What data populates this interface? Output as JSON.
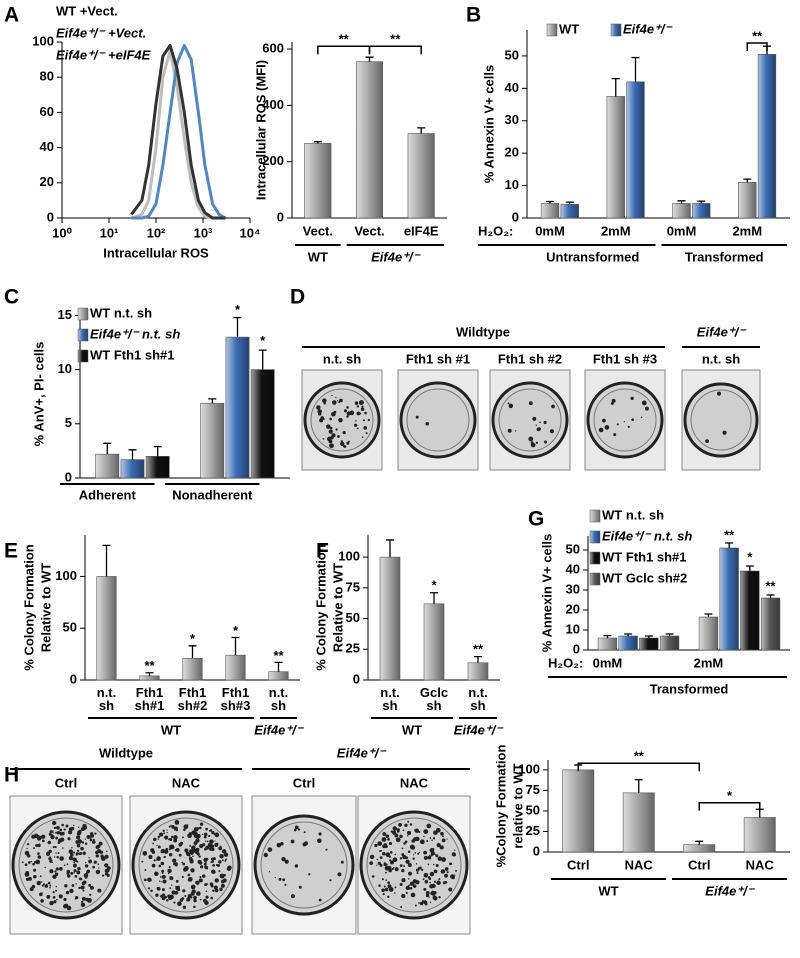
{
  "chart_data": [
    {
      "type": "line",
      "x_label": "Intracellular ROS",
      "x_log": true,
      "x": [
        30,
        50,
        70,
        100,
        140,
        200,
        280,
        400,
        560,
        800,
        1100,
        1600,
        2200,
        3000
      ],
      "series": [
        {
          "name": "WT +Vect.",
          "color": "#bdbdbd",
          "values": [
            0,
            2,
            10,
            40,
            80,
            95,
            75,
            45,
            20,
            6,
            1,
            0,
            0,
            0
          ]
        },
        {
          "name": "Eif4e⁺/⁻ +Vect.",
          "color": "#4f86c6",
          "values": [
            0,
            0,
            1,
            8,
            30,
            60,
            88,
            98,
            90,
            60,
            30,
            8,
            2,
            0
          ]
        },
        {
          "name": "Eif4e⁺/⁻ +eIF4E",
          "color": "#333333",
          "values": [
            2,
            10,
            30,
            65,
            92,
            98,
            85,
            60,
            30,
            10,
            3,
            0,
            0,
            0
          ]
        }
      ],
      "xlim": [
        1,
        10000
      ],
      "xticks": [
        {
          "value": 1,
          "label": "10⁰"
        },
        {
          "value": 10,
          "label": "10¹"
        },
        {
          "value": 100,
          "label": "10²"
        },
        {
          "value": 1000,
          "label": "10³"
        },
        {
          "value": 10000,
          "label": "10⁴"
        }
      ],
      "ylim": [
        0,
        100
      ],
      "yticks": [
        0,
        20,
        40,
        60,
        80,
        100
      ],
      "legend": "text-top-left"
    },
    {
      "type": "bar",
      "y_label": "Intracellular ROS (MFI)",
      "categories": [
        "Vect.",
        "Vect.",
        "eIF4E"
      ],
      "values": [
        265,
        555,
        300
      ],
      "errors": [
        6,
        16,
        20
      ],
      "color": "#a8a8a8",
      "groups": [
        "WT",
        "Eif4e⁺/⁻"
      ],
      "annotations": [
        "**",
        "**"
      ],
      "ylim": [
        0,
        625
      ],
      "yticks": [
        0,
        200,
        400,
        600
      ]
    },
    {
      "type": "bar",
      "y_label": "% Annexin V+ cells",
      "x_prefix": "H₂O₂:",
      "categories": [
        "0mM",
        "2mM",
        "0mM",
        "2mM"
      ],
      "series": [
        {
          "name": "WT",
          "color": "#a8a8a8",
          "values": [
            4.5,
            37.5,
            4.5,
            11
          ],
          "errors": [
            0.6,
            5.5,
            0.8,
            1
          ]
        },
        {
          "name": "Eif4e⁺/⁻",
          "color": "#3a6db5",
          "values": [
            4.2,
            42,
            4.5,
            50.5
          ],
          "errors": [
            0.7,
            7.5,
            0.7,
            2.5
          ]
        }
      ],
      "groups": [
        "Untransformed",
        "Transformed"
      ],
      "annotations": [
        "**"
      ],
      "ylim": [
        0,
        58
      ],
      "yticks": [
        0,
        10,
        20,
        30,
        40,
        50
      ],
      "legend": "top"
    },
    {
      "type": "bar",
      "y_label": "% AnV+, PI- cells",
      "categories": [
        "Adherent",
        "Nonadherent"
      ],
      "series": [
        {
          "name": "WT n.t. sh",
          "color": "#a8a8a8",
          "values": [
            2.2,
            6.9
          ],
          "errors": [
            1.0,
            0.4
          ]
        },
        {
          "name": "Eif4e⁺/⁻ n.t. sh",
          "color": "#3a6db5",
          "values": [
            1.7,
            13
          ],
          "errors": [
            0.9,
            1.8
          ]
        },
        {
          "name": "WT Fth1 sh#1",
          "color": "#111111",
          "values": [
            2.0,
            10
          ],
          "errors": [
            0.9,
            1.8
          ]
        }
      ],
      "annotations": [
        "*",
        "*"
      ],
      "ylim": [
        0,
        15.5
      ],
      "yticks": [
        0,
        5,
        10,
        15
      ],
      "legend": "top-left"
    },
    {
      "type": "bar",
      "y_label": [
        "% Colony Formation",
        "Relative to WT"
      ],
      "categories": [
        "n.t. sh",
        "Fth1 sh#1",
        "Fth1 sh#2",
        "Fth1 sh#3",
        "n.t. sh"
      ],
      "values": [
        100,
        4,
        21,
        24,
        8
      ],
      "errors": [
        30,
        3,
        12,
        17,
        9
      ],
      "color": "#a8a8a8",
      "groups": [
        "WT",
        "Eif4e⁺/⁻"
      ],
      "annotations": [
        "**",
        "*",
        "*",
        "**"
      ],
      "ylim": [
        0,
        140
      ],
      "yticks": [
        0,
        50,
        100
      ]
    },
    {
      "type": "bar",
      "y_label": [
        "% Colony Formation",
        "Relative to WT"
      ],
      "categories": [
        "n.t. sh",
        "Gclc sh",
        "n.t. sh"
      ],
      "values": [
        100,
        62,
        14
      ],
      "errors": [
        14,
        9,
        5
      ],
      "color": "#a8a8a8",
      "groups": [
        "WT",
        "Eif4e⁺/⁻"
      ],
      "annotations": [
        "*",
        "**"
      ],
      "ylim": [
        0,
        118
      ],
      "yticks": [
        0,
        25,
        50,
        75,
        100
      ]
    },
    {
      "type": "bar",
      "y_label": "% Annexin V+ cells",
      "x_prefix": "H₂O₂:",
      "categories": [
        "0mM",
        "2mM"
      ],
      "series": [
        {
          "name": "WT n.t. sh",
          "color": "#a8a8a8",
          "values": [
            6,
            16.5
          ],
          "errors": [
            1.2,
            1.5
          ]
        },
        {
          "name": "Eif4e⁺/⁻ n.t. sh",
          "color": "#3a6db5",
          "values": [
            7,
            51
          ],
          "errors": [
            1,
            2.5
          ]
        },
        {
          "name": "WT Fth1 sh#1",
          "color": "#111111",
          "values": [
            6,
            39.5
          ],
          "errors": [
            1,
            2.5
          ]
        },
        {
          "name": "WT Gclc sh#2",
          "color": "#5a5a5a",
          "values": [
            7,
            26
          ],
          "errors": [
            1,
            1.5
          ]
        }
      ],
      "groups": [
        "Transformed"
      ],
      "annotations": [
        "**",
        "*",
        "**"
      ],
      "ylim": [
        0,
        57
      ],
      "yticks": [
        0,
        10,
        20,
        30,
        40,
        50
      ],
      "legend": "top-left"
    },
    {
      "type": "bar",
      "y_label": [
        "%Colony Formation",
        "relative to WT"
      ],
      "categories": [
        "Ctrl",
        "NAC",
        "Ctrl",
        "NAC"
      ],
      "values": [
        100,
        72,
        9,
        42
      ],
      "errors": [
        6,
        16,
        4,
        10
      ],
      "color": "#a8a8a8",
      "groups": [
        "WT",
        "Eif4e⁺/⁻"
      ],
      "annotations": [
        "**",
        "*"
      ],
      "ylim": [
        0,
        112
      ],
      "yticks": [
        0,
        25,
        50,
        75,
        100
      ]
    }
  ],
  "figure": {
    "panel_labels": [
      "A",
      "B",
      "C",
      "D",
      "E",
      "F",
      "G",
      "H"
    ],
    "panel_d": {
      "groups": [
        "Wildtype",
        "Eif4e⁺/⁻"
      ],
      "wells": [
        "n.t. sh",
        "Fth1 sh #1",
        "Fth1 sh #2",
        "Fth1 sh #3",
        "n.t. sh"
      ]
    },
    "panel_h": {
      "groups": [
        "Wildtype",
        "Eif4e⁺/⁻"
      ],
      "wells": [
        "Ctrl",
        "NAC",
        "Ctrl",
        "NAC"
      ]
    }
  }
}
